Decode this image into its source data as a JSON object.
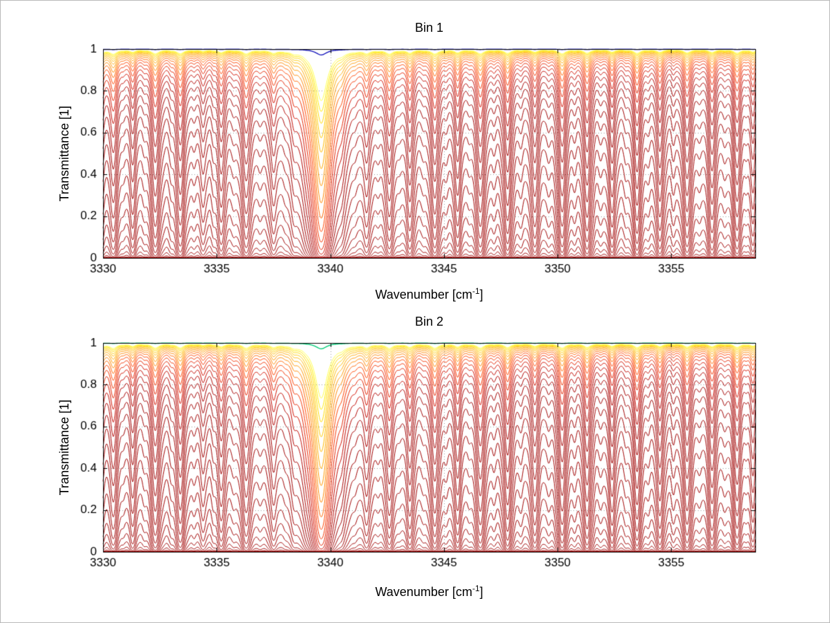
{
  "chart_data": [
    {
      "type": "line",
      "title": "Bin 1",
      "xlabel": {
        "text": "Wavenumber [cm",
        "sup": "-1",
        "end": "]"
      },
      "ylabel": "Transmittance [1]",
      "xlim": [
        3330,
        3358.7
      ],
      "ylim": [
        0,
        1
      ],
      "xticks": [
        3330,
        3335,
        3340,
        3345,
        3350,
        3355
      ],
      "yticks": [
        0,
        0.2,
        0.4,
        0.6,
        0.8,
        1
      ],
      "grid": "dotted",
      "legend": "none",
      "top_curve_color": "#1515bb",
      "scale_multiplier": 1.0
    },
    {
      "type": "line",
      "title": "Bin 2",
      "xlabel": {
        "text": "Wavenumber [cm",
        "sup": "-1",
        "end": "]"
      },
      "ylabel": "Transmittance [1]",
      "xlim": [
        3330,
        3358.7
      ],
      "ylim": [
        0,
        1
      ],
      "xticks": [
        3330,
        3335,
        3340,
        3345,
        3350,
        3355
      ],
      "yticks": [
        0,
        0.2,
        0.4,
        0.6,
        0.8,
        1
      ],
      "grid": "dotted",
      "legend": "none",
      "top_curve_color": "#00cc77",
      "scale_multiplier": 1.08
    }
  ],
  "spectra_model": {
    "baseline_absorption": 0.105,
    "top_curve_scale": 0.002,
    "absorption_lines": [
      [
        3329.9,
        0.85,
        0.18
      ],
      [
        3330.45,
        1.0,
        0.18
      ],
      [
        3331.3,
        0.5,
        0.15
      ],
      [
        3332.3,
        0.95,
        0.18
      ],
      [
        3333.4,
        0.9,
        0.18
      ],
      [
        3334.4,
        0.3,
        0.14
      ],
      [
        3335.2,
        0.6,
        0.16
      ],
      [
        3336.3,
        0.9,
        0.18
      ],
      [
        3337.5,
        0.6,
        0.16
      ],
      [
        3338.4,
        0.4,
        0.15
      ],
      [
        3339.6,
        14.0,
        0.3
      ],
      [
        3340.5,
        0.5,
        0.18
      ],
      [
        3341.6,
        0.65,
        0.16
      ],
      [
        3342.6,
        0.9,
        0.17
      ],
      [
        3343.5,
        0.7,
        0.16
      ],
      [
        3344.6,
        0.95,
        0.18
      ],
      [
        3345.6,
        0.65,
        0.16
      ],
      [
        3346.6,
        0.95,
        0.18
      ],
      [
        3347.8,
        0.85,
        0.17
      ],
      [
        3349.0,
        0.55,
        0.16
      ],
      [
        3350.2,
        0.95,
        0.18
      ],
      [
        3351.3,
        0.8,
        0.17
      ],
      [
        3352.4,
        0.55,
        0.15
      ],
      [
        3353.5,
        0.85,
        0.17
      ],
      [
        3354.5,
        0.6,
        0.16
      ],
      [
        3355.7,
        0.75,
        0.17
      ],
      [
        3356.8,
        0.65,
        0.16
      ],
      [
        3357.9,
        0.8,
        0.17
      ],
      [
        3358.6,
        0.5,
        0.15
      ],
      [
        3330.9,
        0.12,
        0.12
      ],
      [
        3331.8,
        0.1,
        0.12
      ],
      [
        3333.0,
        0.12,
        0.12
      ],
      [
        3334.0,
        0.1,
        0.12
      ],
      [
        3334.85,
        0.12,
        0.12
      ],
      [
        3335.75,
        0.1,
        0.12
      ],
      [
        3336.9,
        0.12,
        0.12
      ],
      [
        3338.0,
        0.1,
        0.12
      ],
      [
        3338.95,
        0.12,
        0.12
      ],
      [
        3341.1,
        0.12,
        0.12
      ],
      [
        3342.1,
        0.1,
        0.12
      ],
      [
        3343.05,
        0.12,
        0.12
      ],
      [
        3344.1,
        0.1,
        0.12
      ],
      [
        3345.1,
        0.12,
        0.12
      ],
      [
        3346.1,
        0.1,
        0.12
      ],
      [
        3347.2,
        0.12,
        0.12
      ],
      [
        3348.4,
        0.12,
        0.12
      ],
      [
        3349.6,
        0.1,
        0.12
      ],
      [
        3350.75,
        0.12,
        0.12
      ],
      [
        3351.9,
        0.1,
        0.12
      ],
      [
        3353.0,
        0.12,
        0.12
      ],
      [
        3354.0,
        0.1,
        0.12
      ],
      [
        3355.1,
        0.12,
        0.12
      ],
      [
        3356.25,
        0.1,
        0.12
      ],
      [
        3357.35,
        0.12,
        0.12
      ],
      [
        3358.3,
        0.1,
        0.12
      ]
    ],
    "curve_scales": [
      0.02,
      0.025,
      0.031,
      0.039,
      0.048,
      0.06,
      0.075,
      0.094,
      0.117,
      0.146,
      0.182,
      0.227,
      0.283,
      0.353,
      0.44,
      0.549,
      0.684,
      0.853,
      1.064,
      1.327,
      1.654,
      2.063,
      2.572,
      3.207,
      3.999,
      4.987,
      6.218,
      7.754,
      9.668,
      12.055,
      15.032,
      18.744,
      23.372,
      29.143,
      36.339,
      45.312
    ],
    "curve_colors": [
      "#ffff44",
      "#ffee00",
      "#ffdd00",
      "#ffcc00",
      "#ffbb00",
      "#ffaa00",
      "#ff9900",
      "#ff8800",
      "#ff6600",
      "#ff4400",
      "#f53300",
      "#e62200",
      "#d41100",
      "#c20800",
      "#b30300",
      "#a80000",
      "#a30000",
      "#a00000",
      "#a00000",
      "#a00000",
      "#a00000",
      "#a00000",
      "#a00000",
      "#a00000",
      "#a00000",
      "#a00000",
      "#a00000",
      "#a00000",
      "#a00000",
      "#a00000",
      "#a00000",
      "#a00000",
      "#a00000",
      "#a00000",
      "#a00000",
      "#a00000"
    ],
    "texture": {
      "amplitude": 0.03,
      "frequencies": [
        9.7,
        15.9,
        23.3
      ],
      "phases": [
        2,
        0,
        4
      ]
    }
  },
  "layout_colors": {
    "axis": "#000000",
    "grid": "#999999",
    "background": "#ffffff"
  }
}
